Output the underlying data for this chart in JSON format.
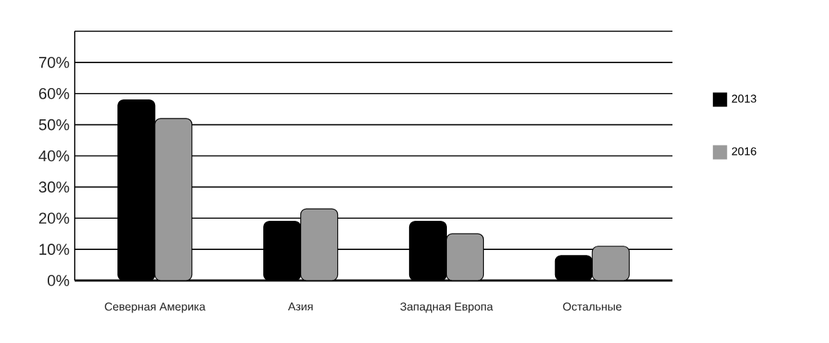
{
  "chart_data": {
    "type": "bar",
    "categories": [
      "Северная Америка",
      "Азия",
      "Западная Европа",
      "Остальные"
    ],
    "series": [
      {
        "name": "2013",
        "color": "#000000",
        "values": [
          58,
          19,
          19,
          8
        ]
      },
      {
        "name": "2016",
        "color": "#9a9a9a",
        "values": [
          52,
          23,
          15,
          11
        ]
      }
    ],
    "ylim": [
      0,
      80
    ],
    "yticks": [
      {
        "value": 0,
        "label": "0%"
      },
      {
        "value": 10,
        "label": "10%"
      },
      {
        "value": 20,
        "label": "20%"
      },
      {
        "value": 30,
        "label": "30%"
      },
      {
        "value": 40,
        "label": "40%"
      },
      {
        "value": 50,
        "label": "50%"
      },
      {
        "value": 60,
        "label": "60%"
      },
      {
        "value": 70,
        "label": "70%"
      },
      {
        "value": 80,
        "label": null
      }
    ],
    "grid": "y",
    "legend": "right"
  }
}
